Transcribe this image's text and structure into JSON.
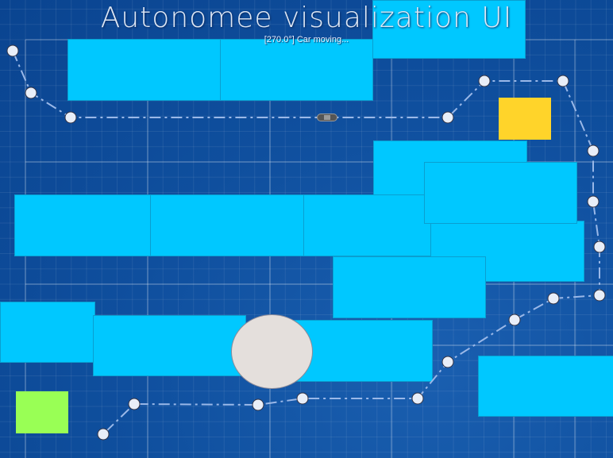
{
  "header": {
    "title": "Autonomee visualization UI",
    "status": "[270.0°] Car moving..."
  },
  "colors": {
    "obstacle": "#00c8ff",
    "goal": "#ffd42a",
    "start": "#99ff55",
    "waypoint": "#e8eef8",
    "path": "#9ab8e8",
    "round_obstacle": "#e4dfdc"
  },
  "car": {
    "heading_deg": 270.0
  }
}
